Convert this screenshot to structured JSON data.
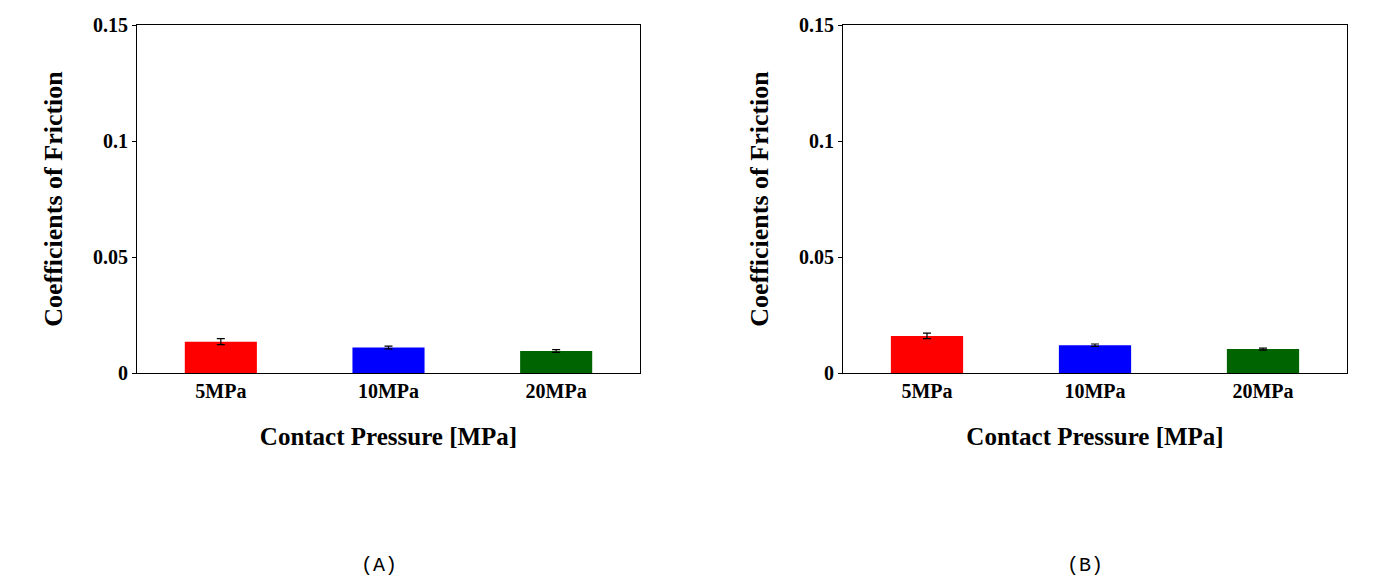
{
  "chart_data": [
    {
      "type": "bar",
      "title": "(A)",
      "x_label": "Contact Pressure [MPa]",
      "y_label": "Coefficients of Friction",
      "categories": [
        "5MPa",
        "10MPa",
        "20MPa"
      ],
      "values": [
        0.0135,
        0.011,
        0.0095
      ],
      "errors": [
        0.0013,
        0.0006,
        0.0006
      ],
      "colors": [
        "#ff0000",
        "#0000ff",
        "#006400"
      ],
      "ylim": [
        0,
        0.15
      ],
      "yticks": [
        0,
        0.05,
        0.1,
        0.15
      ],
      "grid": false
    },
    {
      "type": "bar",
      "title": "(B)",
      "x_label": "Contact Pressure [MPa]",
      "y_label": "Coefficients of Friction",
      "categories": [
        "5MPa",
        "10MPa",
        "20MPa"
      ],
      "values": [
        0.016,
        0.012,
        0.0103
      ],
      "errors": [
        0.0012,
        0.0005,
        0.0004
      ],
      "colors": [
        "#ff0000",
        "#0000ff",
        "#006400"
      ],
      "ylim": [
        0,
        0.15
      ],
      "yticks": [
        0,
        0.05,
        0.1,
        0.15
      ],
      "grid": false
    }
  ]
}
